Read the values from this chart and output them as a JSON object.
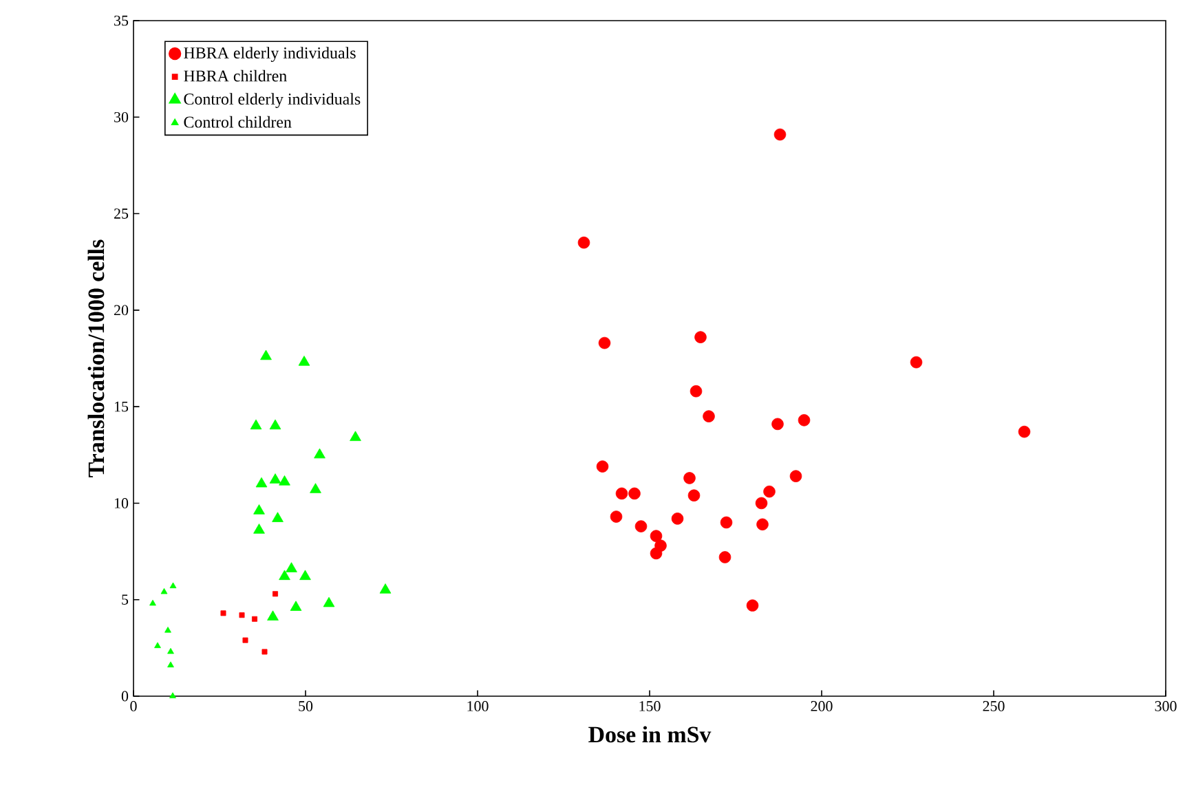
{
  "chart_data": {
    "type": "scatter",
    "xlabel": "Dose in mSv",
    "ylabel": "Translocation/1000 cells",
    "xlim": [
      0,
      300
    ],
    "xticks": [
      0,
      50,
      100,
      150,
      200,
      250,
      300
    ],
    "ylim": [
      0,
      35
    ],
    "yticks": [
      0,
      5,
      10,
      15,
      20,
      25,
      30,
      35
    ],
    "legend": "top left",
    "grid": false,
    "series": [
      {
        "name": "HBRA elderly individuals",
        "color": "#ff0000",
        "marker": "circle",
        "x": [
          187.9,
          130.9,
          136.9,
          164.8,
          227.5,
          258.9,
          163.5,
          167.2,
          187.2,
          194.9,
          136.3,
          192.5,
          161.6,
          141.9,
          145.6,
          162.9,
          184.8,
          182.5,
          140.3,
          158.1,
          147.5,
          172.3,
          182.8,
          151.9,
          153.2,
          151.9,
          171.9,
          179.9
        ],
        "values": [
          29.1,
          23.5,
          18.3,
          18.6,
          17.3,
          13.7,
          15.8,
          14.5,
          14.1,
          14.3,
          11.9,
          11.4,
          11.3,
          10.5,
          10.5,
          10.4,
          10.6,
          10.0,
          9.3,
          9.2,
          8.8,
          9.0,
          8.9,
          8.3,
          7.8,
          7.4,
          7.2,
          4.7
        ]
      },
      {
        "name": "HBRA children",
        "color": "#ff0000",
        "marker": "square",
        "x": [
          26.1,
          31.5,
          35.2,
          32.5,
          38.1,
          41.2
        ],
        "values": [
          4.3,
          4.2,
          4.0,
          2.9,
          2.3,
          5.3
        ]
      },
      {
        "name": "Control elderly individuals",
        "color": "#00ff00",
        "marker": "triangle",
        "x": [
          38.5,
          49.6,
          35.6,
          41.2,
          64.5,
          54.1,
          37.2,
          41.2,
          43.9,
          52.9,
          36.5,
          41.9,
          36.5,
          45.9,
          43.9,
          49.9,
          56.8,
          47.2,
          40.5,
          73.2
        ],
        "values": [
          17.6,
          17.3,
          14.0,
          14.0,
          13.4,
          12.5,
          11.0,
          11.2,
          11.1,
          10.7,
          9.6,
          9.2,
          8.6,
          6.6,
          6.2,
          6.2,
          4.8,
          4.6,
          4.1,
          5.5
        ]
      },
      {
        "name": "Control children",
        "color": "#00ff00",
        "marker": "triangle",
        "x": [
          5.6,
          8.9,
          11.5,
          10.0,
          7.0,
          10.8,
          10.8,
          11.4
        ],
        "values": [
          4.8,
          5.4,
          5.7,
          3.4,
          2.6,
          2.3,
          1.6,
          0.0
        ]
      }
    ]
  }
}
